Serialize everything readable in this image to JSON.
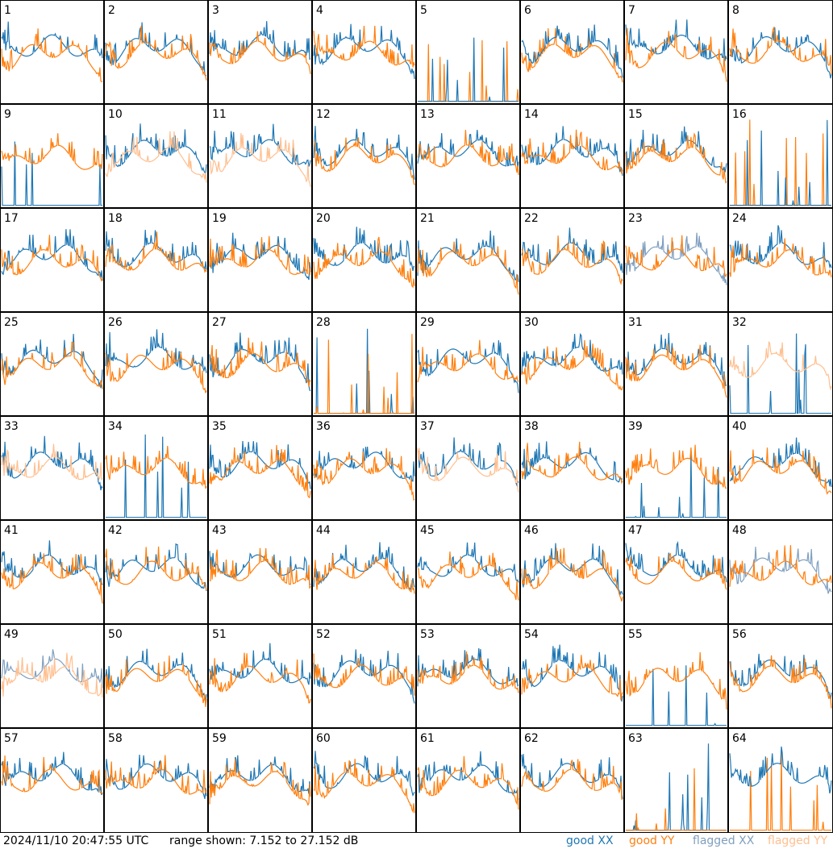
{
  "chart_data": {
    "type": "line",
    "layout": "8x8 small multiples",
    "panels": [
      1,
      2,
      3,
      4,
      5,
      6,
      7,
      8,
      9,
      10,
      11,
      12,
      13,
      14,
      15,
      16,
      17,
      18,
      19,
      20,
      21,
      22,
      23,
      24,
      25,
      26,
      27,
      28,
      29,
      30,
      31,
      32,
      33,
      34,
      35,
      36,
      37,
      38,
      39,
      40,
      41,
      42,
      43,
      44,
      45,
      46,
      47,
      48,
      49,
      50,
      51,
      52,
      53,
      54,
      55,
      56,
      57,
      58,
      59,
      60,
      61,
      62,
      63,
      64
    ],
    "series_meta": [
      {
        "name": "good XX",
        "color": "#1f77b4"
      },
      {
        "name": "good YY",
        "color": "#ff7f0e"
      },
      {
        "name": "flagged XX",
        "color": "#7f9fbf"
      },
      {
        "name": "flagged YY",
        "color": "#ffbf8f"
      }
    ],
    "ylim": [
      7.152,
      27.152
    ],
    "flags": {
      "6": "yx",
      "10": "Yf",
      "11": "Yf",
      "32": "Yf",
      "33": "Yf",
      "37": "Yf",
      "23": "Xf",
      "48": "Xf",
      "49": "XYf"
    },
    "dead_x": [
      5,
      9,
      16,
      28,
      32,
      34,
      39,
      55,
      63
    ],
    "dead_y": [
      5,
      16,
      28,
      63,
      64
    ],
    "x_dominant": [
      5,
      6,
      16,
      64
    ]
  },
  "footer": {
    "timestamp": "2024/11/10 20:47:55 UTC",
    "range": "range shown: 7.152 to 27.152 dB",
    "legend": [
      "good XX",
      "good YY",
      "flagged XX",
      "flagged YY"
    ],
    "legend_colors": [
      "#1f77b4",
      "#ff7f0e",
      "#7f9fbf",
      "#ffbf8f"
    ]
  }
}
